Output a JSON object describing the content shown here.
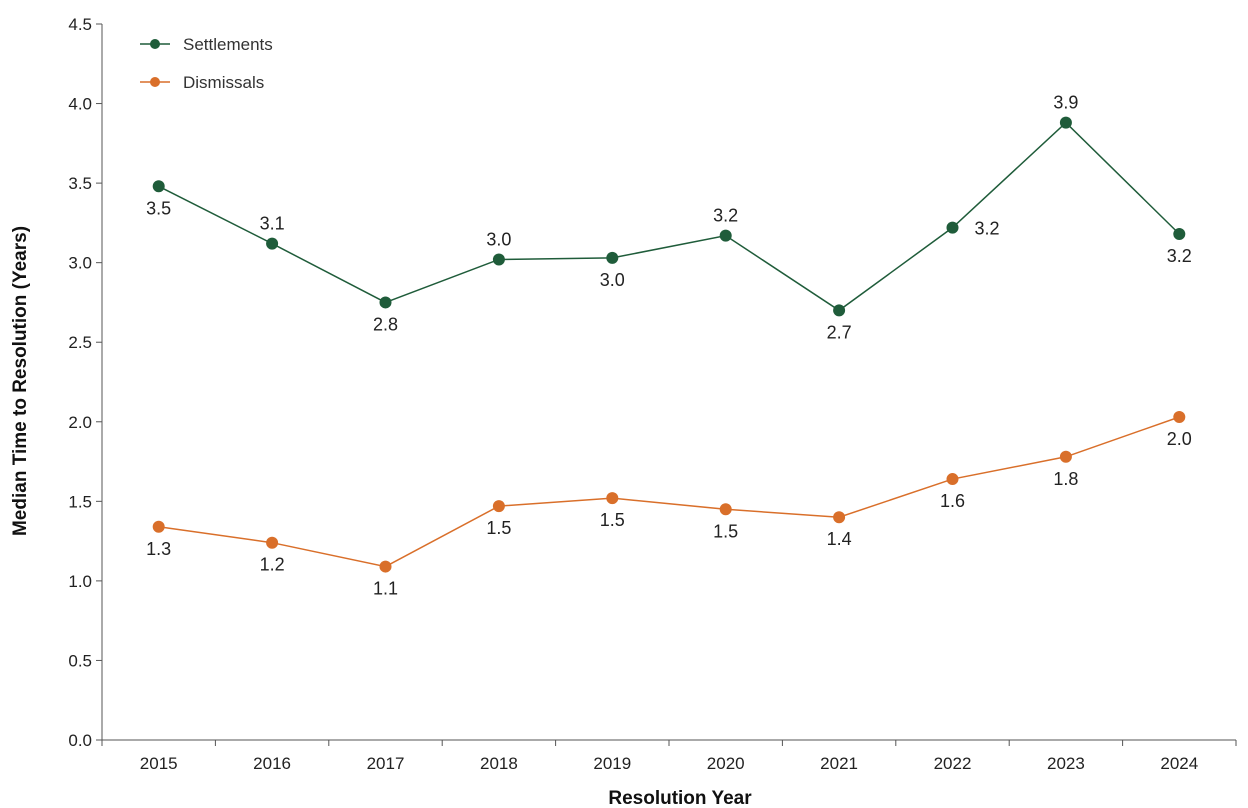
{
  "chart_data": {
    "type": "line",
    "title": "",
    "xlabel": "Resolution Year",
    "ylabel": "Median Time to Resolution (Years)",
    "ylim": [
      0,
      4.5
    ],
    "yticks": [
      "0.0",
      "0.5",
      "1.0",
      "1.5",
      "2.0",
      "2.5",
      "3.0",
      "3.5",
      "4.0",
      "4.5"
    ],
    "categories": [
      "2015",
      "2016",
      "2017",
      "2018",
      "2019",
      "2020",
      "2021",
      "2022",
      "2023",
      "2024"
    ],
    "grid": false,
    "legend_position": "top-left",
    "series": [
      {
        "name": "Settlements",
        "color": "#1f5c3a",
        "values": [
          3.48,
          3.12,
          2.75,
          3.02,
          3.03,
          3.17,
          2.7,
          3.22,
          3.88,
          3.18
        ],
        "labels": [
          "3.5",
          "3.1",
          "2.8",
          "3.0",
          "3.0",
          "3.2",
          "2.7",
          "3.2",
          "3.9",
          "3.2"
        ],
        "label_positions": [
          "below",
          "above",
          "below",
          "above",
          "below",
          "above",
          "below",
          "right",
          "above",
          "below"
        ]
      },
      {
        "name": "Dismissals",
        "color": "#d96f2a",
        "values": [
          1.34,
          1.24,
          1.09,
          1.47,
          1.52,
          1.45,
          1.4,
          1.64,
          1.78,
          2.03
        ],
        "labels": [
          "1.3",
          "1.2",
          "1.1",
          "1.5",
          "1.5",
          "1.5",
          "1.4",
          "1.6",
          "1.8",
          "2.0"
        ],
        "label_positions": [
          "below",
          "below",
          "below",
          "below",
          "below",
          "below",
          "below",
          "below",
          "below",
          "below"
        ]
      }
    ]
  }
}
